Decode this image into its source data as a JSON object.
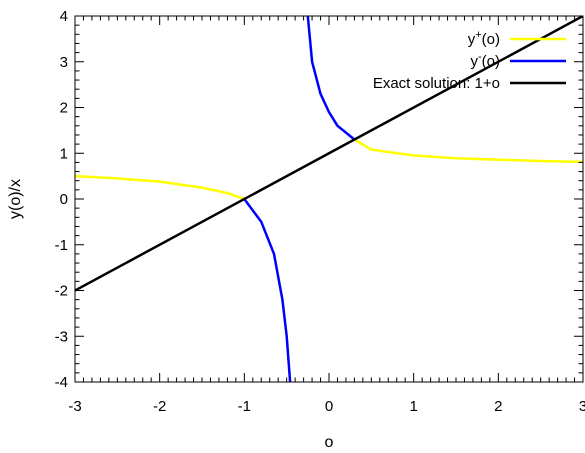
{
  "chart_data": {
    "type": "line",
    "xlabel": "o",
    "ylabel": "y(o)/x",
    "xlim": [
      -3,
      3
    ],
    "ylim": [
      -4,
      4
    ],
    "x_ticks": [
      -3,
      -2,
      -1,
      0,
      1,
      2,
      3
    ],
    "y_ticks": [
      -4,
      -3,
      -2,
      -1,
      0,
      1,
      2,
      3,
      4
    ],
    "x_tick_labels": [
      "-3",
      "-2",
      "-1",
      "0",
      "1",
      "2",
      "3"
    ],
    "y_tick_labels": [
      "-4",
      "-3",
      "-2",
      "-1",
      "0",
      "1",
      "2",
      "3",
      "4"
    ],
    "grid": false,
    "legend_position": "top-right",
    "series": [
      {
        "name": "y+(o)",
        "label_base": "y",
        "label_sup": "+",
        "label_rest": "(o)",
        "color": "#ffff00",
        "segments": [
          [
            [
              -3,
              0.5
            ],
            [
              -2.5,
              0.45
            ],
            [
              -2,
              0.38
            ],
            [
              -1.5,
              0.25
            ],
            [
              -1.2,
              0.13
            ],
            [
              -1,
              0
            ]
          ],
          [
            [
              0.3,
              1.3
            ],
            [
              0.5,
              1.08
            ],
            [
              1,
              0.95
            ],
            [
              1.5,
              0.89
            ],
            [
              2,
              0.86
            ],
            [
              2.5,
              0.83
            ],
            [
              3,
              0.81
            ]
          ]
        ]
      },
      {
        "name": "y-(o)",
        "label_base": "y",
        "label_sup": "-",
        "label_rest": "(o)",
        "color": "#0000ff",
        "segments": [
          [
            [
              -1,
              0
            ],
            [
              -0.8,
              -0.5
            ],
            [
              -0.65,
              -1.2
            ],
            [
              -0.55,
              -2.2
            ],
            [
              -0.5,
              -3.0
            ],
            [
              -0.46,
              -4
            ]
          ],
          [
            [
              -0.25,
              4
            ],
            [
              -0.2,
              3.0
            ],
            [
              -0.1,
              2.3
            ],
            [
              0,
              1.9
            ],
            [
              0.1,
              1.6
            ],
            [
              0.3,
              1.3
            ]
          ]
        ]
      },
      {
        "name": "Exact solution: 1+o",
        "label_base": "Exact solution: 1+o",
        "label_sup": "",
        "label_rest": "",
        "color": "#000000",
        "segments": [
          [
            [
              -3,
              -2
            ],
            [
              3,
              4
            ]
          ]
        ]
      }
    ]
  }
}
